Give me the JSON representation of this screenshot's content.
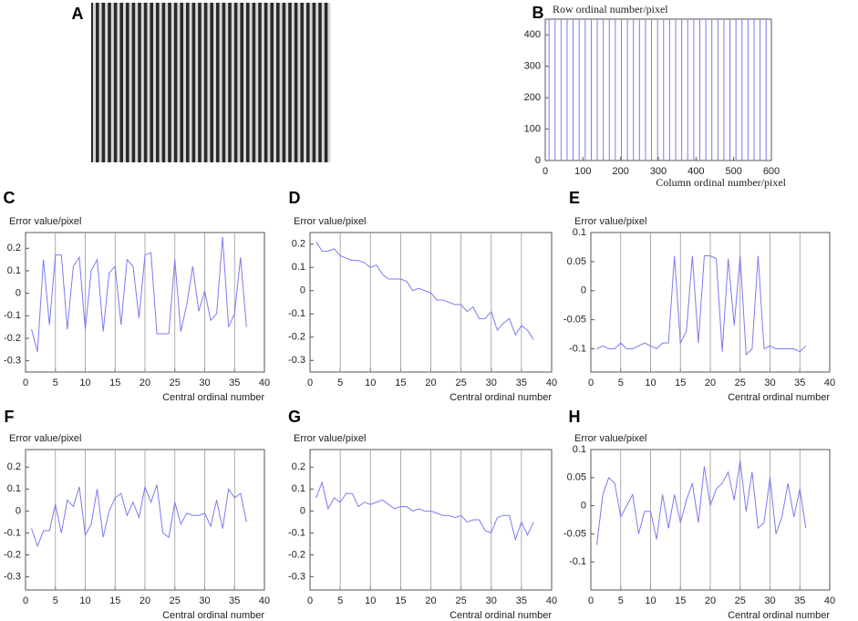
{
  "chart_data": [
    {
      "panel": "A",
      "type": "image"
    },
    {
      "panel": "B",
      "type": "vlines",
      "ylabel": "Row ordinal number/pixel",
      "xlabel": "Column ordinal number/pixel",
      "color": "#7b7bf2",
      "x": [
        10,
        26,
        42,
        58,
        74,
        90,
        106,
        122,
        138,
        154,
        170,
        186,
        202,
        218,
        234,
        250,
        266,
        282,
        298,
        314,
        330,
        346,
        362,
        378,
        394,
        410,
        426,
        442,
        458,
        474,
        490,
        506,
        522,
        538,
        554,
        570,
        586
      ],
      "xlim": [
        0,
        600
      ],
      "xticks": [
        0,
        100,
        200,
        300,
        400,
        500,
        600
      ],
      "ylim": [
        0,
        450
      ],
      "yticks": [
        0,
        100,
        200,
        300,
        400
      ]
    },
    {
      "panel": "C",
      "type": "line",
      "ylabel": "Error value/pixel",
      "xlabel": "Central ordinal number",
      "grid": true,
      "x": [
        1,
        2,
        3,
        4,
        5,
        6,
        7,
        8,
        9,
        10,
        11,
        12,
        13,
        14,
        15,
        16,
        17,
        18,
        19,
        20,
        21,
        22,
        23,
        24,
        25,
        26,
        27,
        28,
        29,
        30,
        31,
        32,
        33,
        34,
        35,
        36,
        37
      ],
      "series": [
        {
          "color": "#7b7bf2",
          "values": [
            -0.16,
            -0.26,
            0.15,
            -0.14,
            0.17,
            0.17,
            -0.16,
            0.12,
            0.16,
            -0.16,
            0.1,
            0.15,
            -0.17,
            0.09,
            0.12,
            -0.14,
            0.15,
            0.12,
            -0.11,
            0.17,
            0.18,
            -0.18,
            -0.18,
            -0.18,
            0.15,
            -0.17,
            -0.05,
            0.12,
            -0.08,
            0.01,
            -0.12,
            -0.09,
            0.25,
            -0.15,
            -0.09,
            0.16,
            -0.15
          ]
        }
      ],
      "xlim": [
        0,
        40
      ],
      "xticks": [
        0,
        5,
        10,
        15,
        20,
        25,
        30,
        35,
        40
      ],
      "ylim": [
        -0.35,
        0.27
      ],
      "yticks": [
        -0.3,
        -0.2,
        -0.1,
        0,
        0.1,
        0.2
      ]
    },
    {
      "panel": "D",
      "type": "line",
      "ylabel": "Error value/pixel",
      "xlabel": "Central ordinal number",
      "grid": true,
      "x": [
        1,
        2,
        3,
        4,
        5,
        6,
        7,
        8,
        9,
        10,
        11,
        12,
        13,
        14,
        15,
        16,
        17,
        18,
        19,
        20,
        21,
        22,
        23,
        24,
        25,
        26,
        27,
        28,
        29,
        30,
        31,
        32,
        33,
        34,
        35,
        36,
        37
      ],
      "series": [
        {
          "color": "#7b7bf2",
          "values": [
            0.21,
            0.17,
            0.17,
            0.18,
            0.15,
            0.14,
            0.13,
            0.13,
            0.12,
            0.1,
            0.11,
            0.07,
            0.05,
            0.05,
            0.05,
            0.04,
            0.0,
            0.01,
            0.0,
            -0.01,
            -0.04,
            -0.04,
            -0.05,
            -0.06,
            -0.06,
            -0.09,
            -0.07,
            -0.12,
            -0.12,
            -0.09,
            -0.17,
            -0.14,
            -0.12,
            -0.19,
            -0.15,
            -0.17,
            -0.21
          ]
        }
      ],
      "xlim": [
        0,
        40
      ],
      "xticks": [
        0,
        5,
        10,
        15,
        20,
        25,
        30,
        35,
        40
      ],
      "ylim": [
        -0.35,
        0.25
      ],
      "yticks": [
        -0.3,
        -0.2,
        -0.1,
        0,
        0.1,
        0.2
      ]
    },
    {
      "panel": "E",
      "type": "line",
      "ylabel": "Error value/pixel",
      "xlabel": "Central ordinal number",
      "grid": true,
      "x": [
        1,
        2,
        3,
        4,
        5,
        6,
        7,
        8,
        9,
        10,
        11,
        12,
        13,
        14,
        15,
        16,
        17,
        18,
        19,
        20,
        21,
        22,
        23,
        24,
        25,
        26,
        27,
        28,
        29,
        30,
        31,
        32,
        33,
        34,
        35,
        36
      ],
      "series": [
        {
          "color": "#7b7bf2",
          "values": [
            -0.1,
            -0.095,
            -0.1,
            -0.1,
            -0.09,
            -0.1,
            -0.1,
            -0.095,
            -0.09,
            -0.095,
            -0.1,
            -0.09,
            -0.09,
            0.06,
            -0.09,
            -0.07,
            0.06,
            -0.09,
            0.06,
            0.06,
            0.055,
            -0.105,
            0.055,
            -0.06,
            0.06,
            -0.11,
            -0.1,
            0.06,
            -0.1,
            -0.095,
            -0.1,
            -0.1,
            -0.1,
            -0.1,
            -0.105,
            -0.095
          ]
        }
      ],
      "xlim": [
        0,
        40
      ],
      "xticks": [
        0,
        5,
        10,
        15,
        20,
        25,
        30,
        35,
        40
      ],
      "ylim": [
        -0.14,
        0.1
      ],
      "yticks": [
        -0.1,
        -0.05,
        0,
        0.05,
        0.1
      ]
    },
    {
      "panel": "F",
      "type": "line",
      "ylabel": "Error value/pixel",
      "xlabel": "Central ordinal number",
      "grid": true,
      "x": [
        1,
        2,
        3,
        4,
        5,
        6,
        7,
        8,
        9,
        10,
        11,
        12,
        13,
        14,
        15,
        16,
        17,
        18,
        19,
        20,
        21,
        22,
        23,
        24,
        25,
        26,
        27,
        28,
        29,
        30,
        31,
        32,
        33,
        34,
        35,
        36,
        37
      ],
      "series": [
        {
          "color": "#7b7bf2",
          "values": [
            -0.08,
            -0.16,
            -0.09,
            -0.09,
            0.03,
            -0.1,
            0.05,
            0.02,
            0.11,
            -0.11,
            -0.06,
            0.1,
            -0.12,
            0.0,
            0.06,
            0.08,
            -0.02,
            0.04,
            -0.03,
            0.11,
            0.04,
            0.12,
            -0.1,
            -0.12,
            0.04,
            -0.06,
            -0.01,
            -0.02,
            -0.02,
            -0.01,
            -0.07,
            0.05,
            -0.08,
            0.1,
            0.06,
            0.08,
            -0.05
          ]
        }
      ],
      "xlim": [
        0,
        40
      ],
      "xticks": [
        0,
        5,
        10,
        15,
        20,
        25,
        30,
        35,
        40
      ],
      "ylim": [
        -0.36,
        0.28
      ],
      "yticks": [
        -0.3,
        -0.2,
        -0.1,
        0,
        0.1,
        0.2
      ]
    },
    {
      "panel": "G",
      "type": "line",
      "ylabel": "Error value/pixel",
      "xlabel": "Central ordinal number",
      "grid": true,
      "x": [
        1,
        2,
        3,
        4,
        5,
        6,
        7,
        8,
        9,
        10,
        11,
        12,
        13,
        14,
        15,
        16,
        17,
        18,
        19,
        20,
        21,
        22,
        23,
        24,
        25,
        26,
        27,
        28,
        29,
        30,
        31,
        32,
        33,
        34,
        35,
        36,
        37
      ],
      "series": [
        {
          "color": "#7b7bf2",
          "values": [
            0.06,
            0.13,
            0.01,
            0.06,
            0.04,
            0.08,
            0.08,
            0.02,
            0.04,
            0.03,
            0.04,
            0.05,
            0.03,
            0.01,
            0.02,
            0.02,
            0.0,
            0.01,
            0.0,
            0.0,
            -0.01,
            -0.02,
            -0.02,
            -0.03,
            -0.02,
            -0.05,
            -0.04,
            -0.04,
            -0.09,
            -0.1,
            -0.03,
            -0.02,
            -0.02,
            -0.13,
            -0.05,
            -0.11,
            -0.05
          ]
        }
      ],
      "xlim": [
        0,
        40
      ],
      "xticks": [
        0,
        5,
        10,
        15,
        20,
        25,
        30,
        35,
        40
      ],
      "ylim": [
        -0.36,
        0.28
      ],
      "yticks": [
        -0.3,
        -0.2,
        -0.1,
        0,
        0.1,
        0.2
      ]
    },
    {
      "panel": "H",
      "type": "line",
      "ylabel": "Error value/pixel",
      "xlabel": "Central ordinal number",
      "grid": true,
      "x": [
        1,
        2,
        3,
        4,
        5,
        6,
        7,
        8,
        9,
        10,
        11,
        12,
        13,
        14,
        15,
        16,
        17,
        18,
        19,
        20,
        21,
        22,
        23,
        24,
        25,
        26,
        27,
        28,
        29,
        30,
        31,
        32,
        33,
        34,
        35,
        36
      ],
      "series": [
        {
          "color": "#7b7bf2",
          "values": [
            -0.07,
            0.02,
            0.05,
            0.04,
            -0.02,
            0.0,
            0.02,
            -0.05,
            -0.01,
            -0.01,
            -0.06,
            0.02,
            -0.04,
            0.02,
            -0.03,
            0.01,
            0.04,
            -0.03,
            0.07,
            0.0,
            0.03,
            0.04,
            0.06,
            0.01,
            0.08,
            -0.01,
            0.06,
            -0.04,
            -0.03,
            0.05,
            -0.05,
            -0.02,
            0.04,
            -0.02,
            0.03,
            -0.04
          ]
        }
      ],
      "xlim": [
        0,
        40
      ],
      "xticks": [
        0,
        5,
        10,
        15,
        20,
        25,
        30,
        35,
        40
      ],
      "ylim": [
        -0.15,
        0.1
      ],
      "yticks": [
        -0.1,
        -0.05,
        0,
        0.05,
        0.1
      ]
    }
  ]
}
